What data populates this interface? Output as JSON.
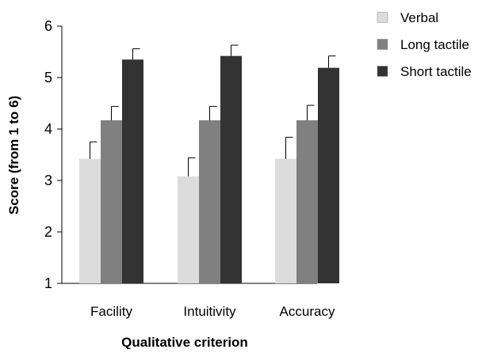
{
  "chart_data": {
    "type": "bar",
    "title": "",
    "xlabel": "Qualitative criterion",
    "ylabel": "Score (from 1 to 6)",
    "ylim": [
      1,
      6
    ],
    "yticks": [
      1,
      2,
      3,
      4,
      5,
      6
    ],
    "grid": false,
    "legend_position": "top-right",
    "categories": [
      "Facility",
      "Intuitivity",
      "Accuracy"
    ],
    "series": [
      {
        "name": "Verbal",
        "color": "#dcdcdc",
        "values": [
          3.42,
          3.08,
          3.42
        ],
        "errors": [
          0.33,
          0.36,
          0.42
        ]
      },
      {
        "name": "Long tactile",
        "color": "#808080",
        "values": [
          4.17,
          4.17,
          4.17
        ],
        "errors": [
          0.27,
          0.27,
          0.29
        ]
      },
      {
        "name": "Short tactile",
        "color": "#333333",
        "values": [
          5.35,
          5.42,
          5.19
        ],
        "errors": [
          0.21,
          0.21,
          0.23
        ]
      }
    ]
  }
}
